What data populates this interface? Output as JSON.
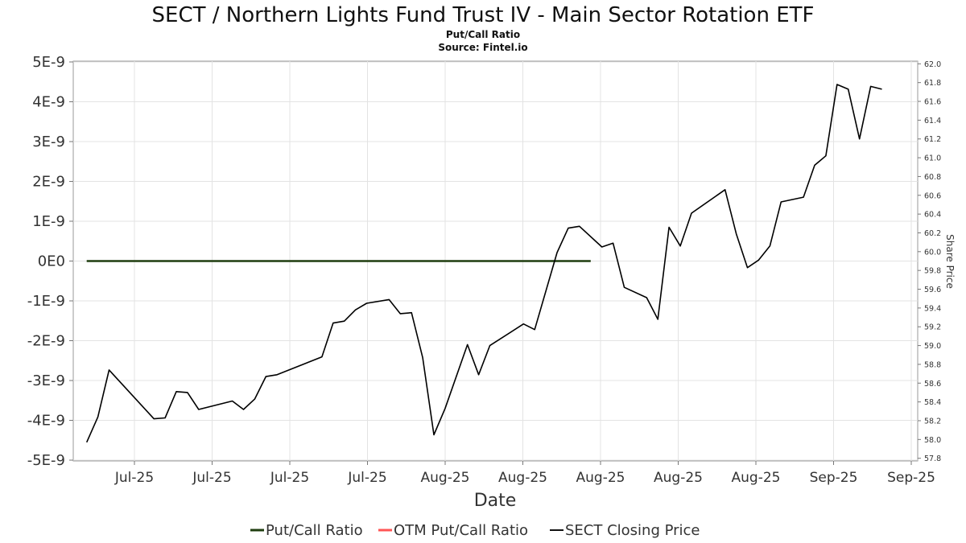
{
  "chart_data": {
    "type": "line",
    "title": "SECT / Northern Lights Fund Trust IV - Main Sector Rotation ETF",
    "subtitle_lines": [
      "Put/Call Ratio",
      "Source: Fintel.io"
    ],
    "xlabel": "Date",
    "ylabel_left": "",
    "ylabel_right": "Share Price",
    "x_tick_labels": [
      "Jul-25",
      "Jul-25",
      "Jul-25",
      "Jul-25",
      "Aug-25",
      "Aug-25",
      "Aug-25",
      "Aug-25",
      "Aug-25",
      "Sep-25",
      "Sep-25"
    ],
    "left_axis": {
      "ylim": [
        -5e-09,
        5e-09
      ],
      "tick_values": [
        5e-09,
        4e-09,
        3e-09,
        2e-09,
        1e-09,
        0,
        -1e-09,
        -2e-09,
        -3e-09,
        -4e-09,
        -5e-09
      ],
      "tick_labels": [
        "5E-9",
        "4E-9",
        "3E-9",
        "2E-9",
        "1E-9",
        "0E0",
        "-1E-9",
        "-2E-9",
        "-3E-9",
        "-4E-9",
        "-5E-9"
      ]
    },
    "right_axis": {
      "ylim": [
        57.78,
        62.02
      ],
      "tick_labels": [
        "62.0",
        "61.8",
        "61.6",
        "61.4",
        "61.2",
        "61.0",
        "60.8",
        "60.6",
        "60.4",
        "60.2",
        "60.0",
        "59.8",
        "59.6",
        "59.4",
        "59.2",
        "59.0",
        "58.8",
        "58.6",
        "58.4",
        "58.2",
        "58.0",
        "57.8"
      ]
    },
    "grid": true,
    "legend_position": "bottom",
    "x_range": [
      -1.2,
      74.2
    ],
    "series": [
      {
        "name": "Put/Call Ratio",
        "axis": "left",
        "color": "#1f3d0f",
        "x": [
          0,
          45
        ],
        "values": [
          0,
          0
        ]
      },
      {
        "name": "OTM Put/Call Ratio",
        "axis": "left",
        "color": "#ff5555",
        "x": [],
        "values": []
      },
      {
        "name": "SECT Closing Price",
        "axis": "right",
        "color": "#000000",
        "x": [
          0,
          1,
          2,
          6,
          7,
          8,
          9,
          10,
          13,
          14,
          15,
          16,
          17,
          21,
          22,
          23,
          24,
          25,
          27,
          28,
          29,
          30,
          31,
          32,
          34,
          35,
          36,
          39,
          40,
          42,
          43,
          44,
          46,
          47,
          48,
          50,
          51,
          52,
          53,
          54,
          57,
          58,
          59,
          60,
          61,
          62,
          64,
          65,
          66,
          67,
          68,
          69,
          70,
          71
        ],
        "values": [
          57.97,
          58.24,
          58.74,
          58.22,
          58.23,
          58.51,
          58.5,
          58.32,
          58.41,
          58.32,
          58.43,
          58.67,
          58.69,
          58.88,
          59.24,
          59.26,
          59.38,
          59.45,
          59.49,
          59.34,
          59.35,
          58.87,
          58.05,
          58.33,
          59.01,
          58.69,
          59.0,
          59.23,
          59.17,
          59.99,
          60.25,
          60.27,
          60.05,
          60.09,
          59.62,
          59.51,
          59.28,
          60.26,
          60.06,
          60.41,
          60.66,
          60.19,
          59.83,
          59.91,
          60.06,
          60.53,
          60.58,
          60.92,
          61.02,
          61.78,
          61.73,
          61.2,
          61.76,
          61.73
        ]
      }
    ]
  }
}
